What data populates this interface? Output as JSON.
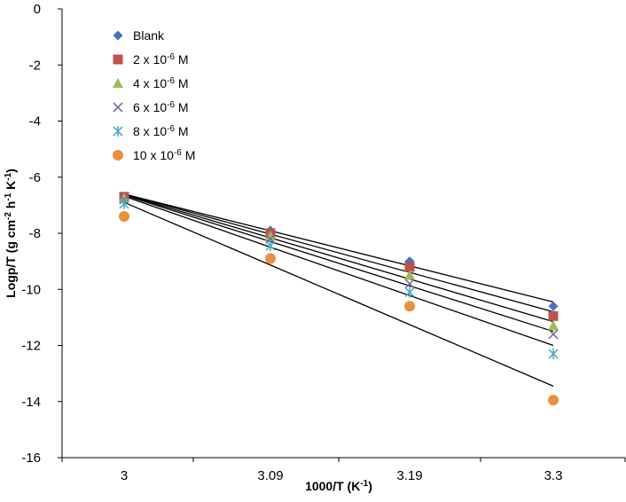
{
  "chart_data": {
    "type": "scatter",
    "title": "",
    "xlabel": "1000/T (K",
    "xlabel_sup": "-1",
    "xlabel_close": ")",
    "ylabel_parts": [
      "Logp/T (g cm",
      "-2",
      " h",
      "-1",
      " K",
      "-1",
      ")"
    ],
    "x_categories": [
      "3",
      "3.09",
      "3.19",
      "3.3"
    ],
    "ylim": [
      -16,
      0
    ],
    "yticks": [
      0,
      -2,
      -4,
      -6,
      -8,
      -10,
      -12,
      -14,
      -16
    ],
    "grid": false,
    "legend_position": "top-left",
    "series": [
      {
        "name": "Blank",
        "label_base": "Blank",
        "label_exp": "",
        "label_unit": "",
        "marker": "diamond",
        "color": "#4472C4",
        "values": [
          -6.7,
          -7.9,
          -9.0,
          -10.6
        ],
        "trend": [
          -6.6,
          -10.45
        ]
      },
      {
        "name": "2 x 10-6 M",
        "label_base": "2 x 10",
        "label_exp": "-6",
        "label_unit": " M",
        "marker": "square",
        "color": "#C0504D",
        "values": [
          -6.7,
          -8.0,
          -9.2,
          -10.95
        ],
        "trend": [
          -6.6,
          -10.8
        ]
      },
      {
        "name": "4 x 10-6 M",
        "label_base": "4 x 10",
        "label_exp": "-6",
        "label_unit": " M",
        "marker": "triangle",
        "color": "#9BBB59",
        "values": [
          -6.75,
          -8.1,
          -9.5,
          -11.3
        ],
        "trend": [
          -6.62,
          -11.15
        ]
      },
      {
        "name": "6 x 10-6 M",
        "label_base": "6 x 10",
        "label_exp": "-6",
        "label_unit": " M",
        "marker": "x",
        "color": "#7F6A9E",
        "values": [
          -6.8,
          -8.2,
          -9.8,
          -11.6
        ],
        "trend": [
          -6.64,
          -11.5
        ]
      },
      {
        "name": "8 x 10-6 M",
        "label_base": "8 x 10",
        "label_exp": "-6",
        "label_unit": " M",
        "marker": "star",
        "color": "#4BACC6",
        "values": [
          -6.95,
          -8.45,
          -10.1,
          -12.3
        ],
        "trend": [
          -6.68,
          -12.0
        ]
      },
      {
        "name": "10 x 10-6 M",
        "label_base": "10 x 10",
        "label_exp": "-6",
        "label_unit": " M",
        "marker": "circle",
        "color": "#E98F3E",
        "values": [
          -7.4,
          -8.9,
          -10.6,
          -13.95
        ],
        "trend": [
          -6.9,
          -13.45
        ]
      }
    ]
  }
}
